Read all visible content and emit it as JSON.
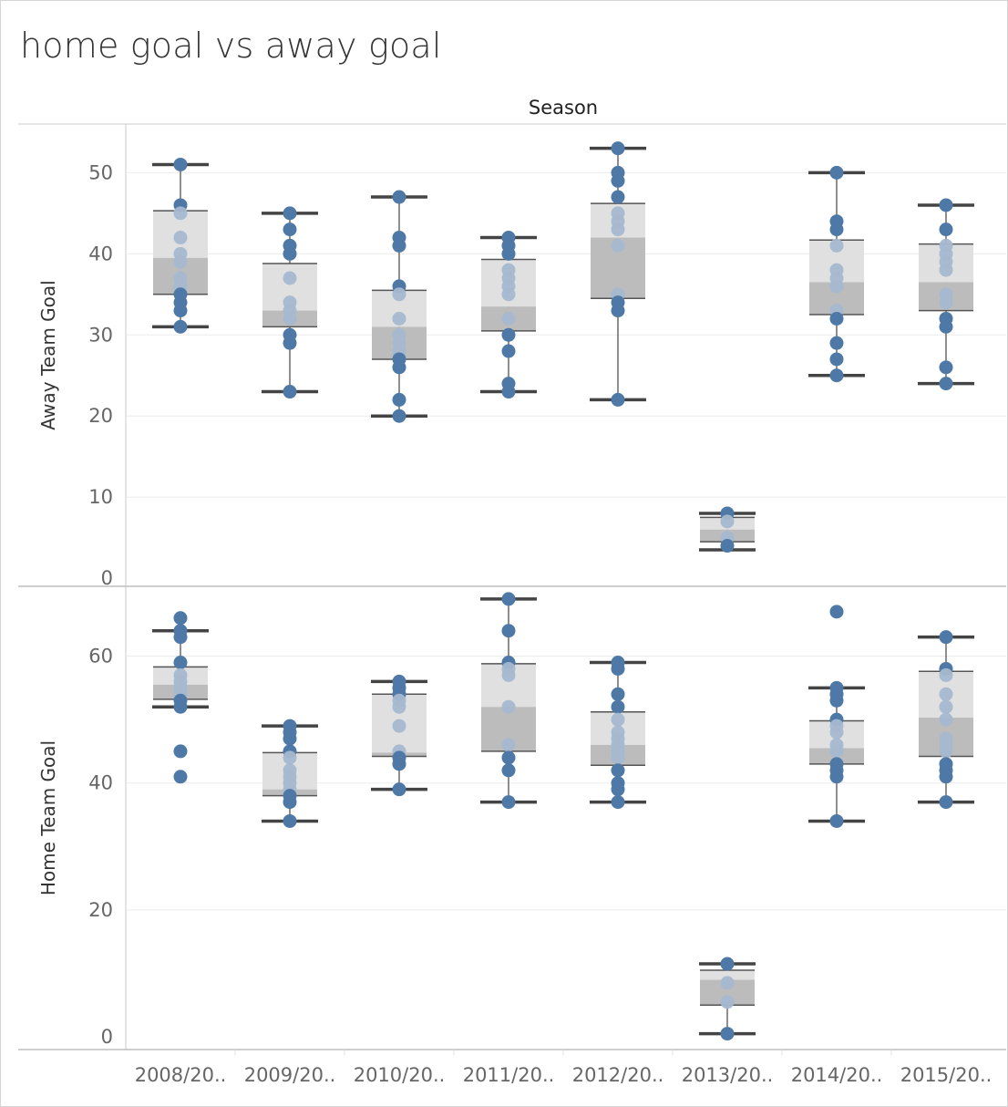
{
  "title": "home goal vs away goal",
  "colors": {
    "dot_dark": "#4e79a7",
    "dot_light": "#a5b8cf",
    "box_upper": "#e0e0e0",
    "box_lower": "#bcbcbc",
    "whisker": "#444444",
    "grid": "#ebebeb",
    "border": "#bdbdbd"
  },
  "chart_data": {
    "type": "boxplot",
    "column_header": "Season",
    "categories": [
      "2008/20..",
      "2009/20..",
      "2010/20..",
      "2011/20..",
      "2012/20..",
      "2013/20..",
      "2014/20..",
      "2015/20.."
    ],
    "panels": [
      {
        "name": "Away Team Goal",
        "ylabel": "Away Team Goal",
        "ylim": [
          -1,
          56
        ],
        "yticks": [
          0,
          10,
          20,
          30,
          40,
          50
        ],
        "grid": true,
        "boxes": [
          {
            "whisker_low": 31,
            "q1": 35,
            "median": 39.5,
            "q3": 45.3,
            "whisker_high": 51,
            "points": [
              51,
              46,
              45,
              42,
              40,
              39,
              37,
              36,
              35,
              34,
              33,
              31
            ]
          },
          {
            "whisker_low": 23,
            "q1": 31,
            "median": 33,
            "q3": 38.8,
            "whisker_high": 45,
            "points": [
              45,
              43,
              41,
              40,
              37,
              34,
              33,
              32,
              30,
              29,
              23
            ]
          },
          {
            "whisker_low": 20,
            "q1": 27,
            "median": 31,
            "q3": 35.5,
            "whisker_high": 47,
            "points": [
              47,
              42,
              41,
              36,
              35,
              32,
              30,
              29,
              28,
              27,
              26,
              22,
              20
            ]
          },
          {
            "whisker_low": 23,
            "q1": 30.5,
            "median": 33.5,
            "q3": 39.3,
            "whisker_high": 42,
            "points": [
              42,
              41,
              40,
              38,
              37,
              36,
              35,
              32,
              30,
              28,
              24,
              23
            ]
          },
          {
            "whisker_low": 22,
            "q1": 34.5,
            "median": 42,
            "q3": 46.2,
            "whisker_high": 53,
            "points": [
              53,
              50,
              49,
              47,
              45,
              44,
              43,
              41,
              35,
              34,
              33,
              22
            ]
          },
          {
            "whisker_low": 3.5,
            "q1": 4.5,
            "median": 6,
            "q3": 7.5,
            "whisker_high": 8,
            "points": [
              8,
              7,
              5,
              4
            ]
          },
          {
            "whisker_low": 25,
            "q1": 32.5,
            "median": 36.5,
            "q3": 41.7,
            "whisker_high": 50,
            "points": [
              50,
              44,
              43,
              41,
              38,
              37,
              36,
              33,
              32,
              29,
              27,
              25
            ]
          },
          {
            "whisker_low": 24,
            "q1": 33,
            "median": 36.5,
            "q3": 41.2,
            "whisker_high": 46,
            "points": [
              46,
              43,
              41,
              40,
              39,
              38,
              35,
              34,
              32,
              31,
              26,
              24
            ]
          }
        ]
      },
      {
        "name": "Home Team Goal",
        "ylabel": "Home Team Goal",
        "ylim": [
          -2,
          71
        ],
        "yticks": [
          0,
          20,
          40,
          60
        ],
        "grid": true,
        "boxes": [
          {
            "whisker_low": 52,
            "q1": 53.2,
            "median": 55.5,
            "q3": 58.3,
            "whisker_high": 64,
            "points": [
              66,
              64,
              63,
              59,
              57,
              56,
              55,
              54,
              53,
              52,
              45,
              41
            ]
          },
          {
            "whisker_low": 34,
            "q1": 38,
            "median": 39,
            "q3": 44.8,
            "whisker_high": 49,
            "points": [
              49,
              48,
              47,
              45,
              44,
              42,
              41,
              40,
              39,
              38,
              37,
              34
            ]
          },
          {
            "whisker_low": 39,
            "q1": 44.2,
            "median": 44.8,
            "q3": 54,
            "whisker_high": 56,
            "points": [
              56,
              55,
              54,
              53,
              52,
              49,
              45,
              44,
              43,
              39
            ]
          },
          {
            "whisker_low": 37,
            "q1": 45,
            "median": 52,
            "q3": 58.8,
            "whisker_high": 69,
            "points": [
              69,
              64,
              59,
              58,
              57,
              52,
              46,
              44,
              42,
              37
            ]
          },
          {
            "whisker_low": 37,
            "q1": 42.8,
            "median": 46,
            "q3": 51.2,
            "whisker_high": 59,
            "points": [
              59,
              58,
              54,
              52,
              50,
              48,
              47,
              46,
              45,
              44,
              42,
              40,
              39,
              37
            ]
          },
          {
            "whisker_low": 0.5,
            "q1": 5,
            "median": 9,
            "q3": 10.5,
            "whisker_high": 11.5,
            "points": [
              11.5,
              8.5,
              5.5,
              0.5
            ]
          },
          {
            "whisker_low": 34,
            "q1": 43,
            "median": 45.5,
            "q3": 49.8,
            "whisker_high": 55,
            "points": [
              67,
              55,
              54,
              53,
              50,
              49,
              48,
              46,
              45,
              43,
              42,
              41,
              34
            ]
          },
          {
            "whisker_low": 37,
            "q1": 44.2,
            "median": 50.3,
            "q3": 57.6,
            "whisker_high": 63,
            "points": [
              63,
              58,
              57,
              54,
              52,
              50,
              47,
              46,
              45,
              43,
              42,
              41,
              37
            ]
          }
        ]
      }
    ]
  }
}
